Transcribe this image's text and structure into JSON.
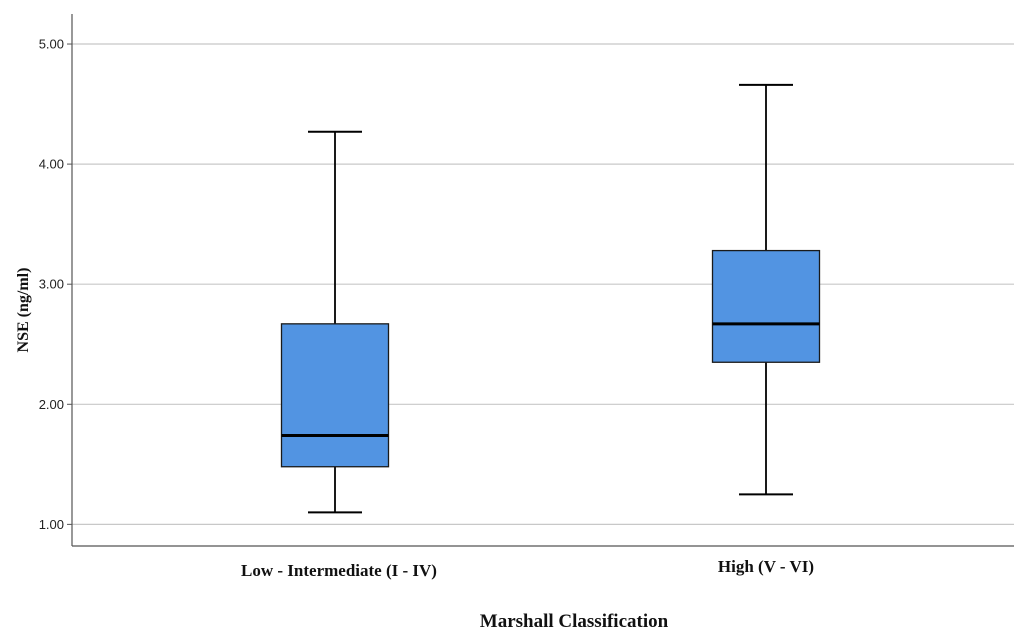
{
  "chart_data": {
    "type": "boxplot",
    "xlabel": "Marshall Classification",
    "ylabel": "NSE (ng/ml)",
    "ylim": [
      0.82,
      5.25
    ],
    "yticks": [
      "1.00",
      "2.00",
      "3.00",
      "4.00",
      "5.00"
    ],
    "grid": true,
    "box_color": "#5294E2",
    "categories": [
      "Low - Intermediate (I - IV)",
      "High (V - VI)"
    ],
    "boxes": [
      {
        "category": "Low - Intermediate (I - IV)",
        "min": 1.1,
        "q1": 1.48,
        "median": 1.74,
        "q3": 2.67,
        "max": 4.27
      },
      {
        "category": "High (V - VI)",
        "min": 1.25,
        "q1": 2.35,
        "median": 2.67,
        "q3": 3.28,
        "max": 4.66
      }
    ]
  }
}
